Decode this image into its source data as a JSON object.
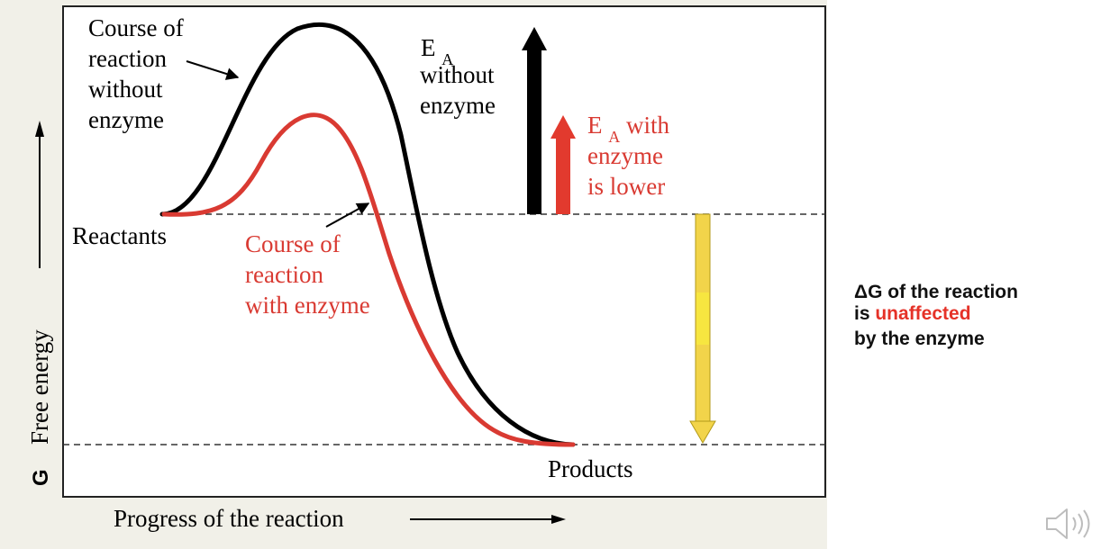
{
  "colors": {
    "panel_bg": "#f1f0e8",
    "plot_bg": "#ffffff",
    "curve_without": "#000000",
    "curve_with": "#d93a32",
    "arrow_ea_without": "#000000",
    "arrow_ea_with": "#e23a2e",
    "arrow_dg": "#f2d44a",
    "highlight_text": "#e53228"
  },
  "axis": {
    "y_label_g": "G",
    "y_label": "Free energy",
    "x_label": "Progress of the reaction"
  },
  "labels": {
    "course_without": [
      "Course of",
      "reaction",
      "without",
      "enzyme"
    ],
    "course_with": [
      "Course of",
      "reaction",
      "with enzyme"
    ],
    "ea_without_e": "E",
    "ea_without_sub": "A",
    "ea_without_rest": [
      "without",
      "enzyme"
    ],
    "ea_with_e": "E",
    "ea_with_sub": "A",
    "ea_with_rest": [
      " with",
      "enzyme",
      "is lower"
    ],
    "reactants": "Reactants",
    "products": "Products"
  },
  "side_note": {
    "line1": "ΔG of the reaction",
    "line2_prefix": "is ",
    "line2_highlight": "unaffected",
    "line3": "by the enzyme"
  },
  "icons": {
    "speaker": "speaker-icon"
  }
}
